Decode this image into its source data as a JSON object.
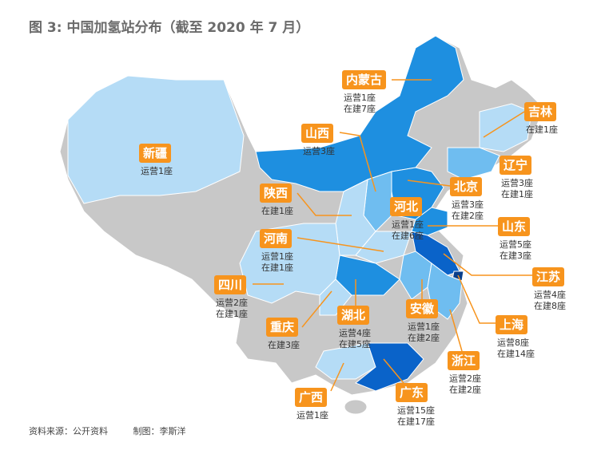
{
  "title": "图 3: 中国加氢站分布（截至 2020 年 7 月）",
  "colors": {
    "label_bg": "#f7941d",
    "leader_line": "#f7941d",
    "no_station": "#c8c8c8",
    "light": "#b5dcf6",
    "mid": "#6fbdf0",
    "blue": "#1e8fe0",
    "dark": "#0a63c9",
    "darkest": "#0a3f8a"
  },
  "provinces": [
    {
      "name": "内蒙古",
      "lines": [
        "运营1座",
        "在建7座"
      ]
    },
    {
      "name": "吉林",
      "lines": [
        "在建1座"
      ]
    },
    {
      "name": "山西",
      "lines": [
        "运营3座"
      ]
    },
    {
      "name": "新疆",
      "lines": [
        "运营1座"
      ]
    },
    {
      "name": "辽宁",
      "lines": [
        "运营3座",
        "在建1座"
      ]
    },
    {
      "name": "北京",
      "lines": [
        "运营3座",
        "在建2座"
      ]
    },
    {
      "name": "陕西",
      "lines": [
        "在建1座"
      ]
    },
    {
      "name": "河北",
      "lines": [
        "运营1座",
        "在建6座"
      ]
    },
    {
      "name": "山东",
      "lines": [
        "运营5座",
        "在建3座"
      ]
    },
    {
      "name": "河南",
      "lines": [
        "运营1座",
        "在建1座"
      ]
    },
    {
      "name": "江苏",
      "lines": [
        "运营4座",
        "在建8座"
      ]
    },
    {
      "name": "四川",
      "lines": [
        "运营2座",
        "在建1座"
      ]
    },
    {
      "name": "湖北",
      "lines": [
        "运营4座",
        "在建5座"
      ]
    },
    {
      "name": "安徽",
      "lines": [
        "运营1座",
        "在建2座"
      ]
    },
    {
      "name": "上海",
      "lines": [
        "运营8座",
        "在建14座"
      ]
    },
    {
      "name": "重庆",
      "lines": [
        "在建3座"
      ]
    },
    {
      "name": "浙江",
      "lines": [
        "运营2座",
        "在建2座"
      ]
    },
    {
      "name": "广西",
      "lines": [
        "运营1座"
      ]
    },
    {
      "name": "广东",
      "lines": [
        "运营15座",
        "在建17座"
      ]
    }
  ],
  "footer": {
    "source": "资料来源：公开资料",
    "author": "制图：李斯洋"
  }
}
